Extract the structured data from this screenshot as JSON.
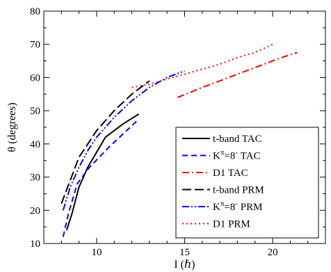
{
  "chart_data": {
    "type": "line",
    "xlabel": "I (ℏ)",
    "ylabel": "θ (degrees)",
    "xlim": [
      7,
      23
    ],
    "ylim": [
      10,
      80
    ],
    "x_ticks": [
      10,
      15,
      20
    ],
    "y_ticks": [
      10,
      20,
      30,
      40,
      50,
      60,
      70,
      80
    ],
    "grid": false,
    "legend_position": "lower-right",
    "series": [
      {
        "name": "t-band TAC",
        "legend_main": "t-band TAC",
        "color": "#000000",
        "dash": "solid",
        "x": [
          8.3,
          8.6,
          9,
          9.5,
          10.5,
          11.5,
          12.4
        ],
        "y": [
          14,
          19,
          27,
          33,
          42,
          46,
          49
        ]
      },
      {
        "name": "Kπ=8- TAC",
        "legend_main": "K",
        "legend_sup1": "π",
        "legend_mid": "=8",
        "legend_sup2": "-",
        "legend_tail": " TAC",
        "color": "#0000ff",
        "dash": "dashed",
        "x": [
          8.1,
          8.4,
          8.9,
          9.6,
          10.7,
          11.7,
          12.3
        ],
        "y": [
          12,
          19,
          28,
          33,
          39,
          44,
          47
        ]
      },
      {
        "name": "D1 TAC",
        "legend_main": "D1 TAC",
        "color": "#ff0000",
        "dash": "dashdot",
        "x": [
          14.6,
          16,
          17.5,
          19,
          20.5,
          21.4
        ],
        "y": [
          54,
          57,
          60,
          63,
          66,
          67.5
        ]
      },
      {
        "name": "t-band PRM",
        "legend_main": "t-band PRM",
        "color": "#000000",
        "dash": "longdash",
        "x": [
          8,
          8.5,
          9,
          9.5,
          10,
          11,
          12,
          13
        ],
        "y": [
          22,
          29,
          36,
          40,
          44,
          50,
          55,
          59
        ]
      },
      {
        "name": "Kπ=8- PRM",
        "legend_main": "K",
        "legend_sup1": "π",
        "legend_mid": "=8",
        "legend_sup2": "-",
        "legend_tail": " PRM",
        "color": "#0000ff",
        "dash": "dashdotdot",
        "x": [
          8.1,
          8.5,
          9,
          9.5,
          10,
          11,
          12,
          13,
          14,
          15
        ],
        "y": [
          20,
          27,
          33,
          38,
          42,
          48,
          53,
          57,
          60,
          62
        ]
      },
      {
        "name": "D1 PRM",
        "legend_main": "D1 PRM",
        "color": "#ff0000",
        "dash": "dotted",
        "x": [
          12,
          13,
          14,
          15,
          16,
          17,
          18,
          19,
          20
        ],
        "y": [
          57,
          58,
          59.5,
          61,
          62.5,
          64,
          66,
          67.5,
          70
        ]
      }
    ]
  }
}
